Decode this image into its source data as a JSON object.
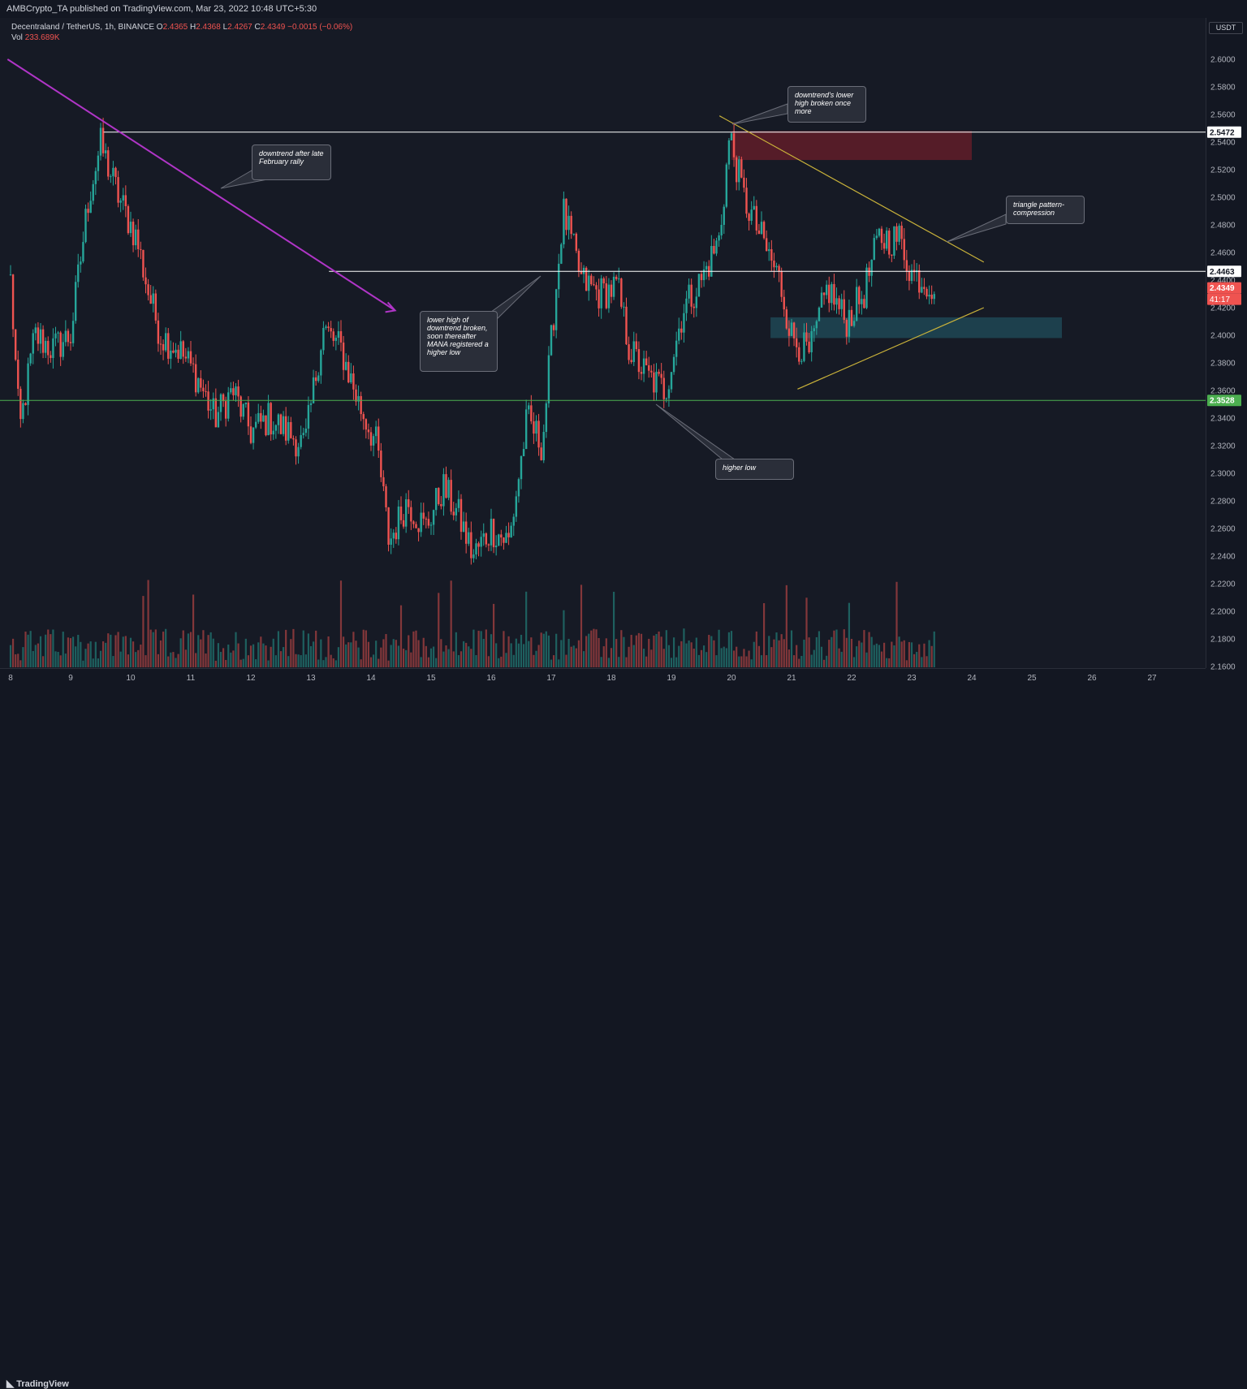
{
  "header": {
    "publisher_line": "AMBCrypto_TA published on TradingView.com, Mar 23, 2022 10:48 UTC+5:30"
  },
  "legend": {
    "symbol": "Decentraland / TetherUS, 1h, BINANCE",
    "open_label": "O",
    "open": "2.4365",
    "high_label": "H",
    "high": "2.4368",
    "low_label": "L",
    "low": "2.4267",
    "close_label": "C",
    "close": "2.4349",
    "change": "−0.0015 (−0.06%)",
    "vol_label": "Vol",
    "vol": "233.689K"
  },
  "price_axis": {
    "currency": "USDT",
    "ticks": [
      "2.6000",
      "2.5800",
      "2.5600",
      "2.5400",
      "2.5200",
      "2.5000",
      "2.4800",
      "2.4600",
      "2.4400",
      "2.4200",
      "2.4000",
      "2.3800",
      "2.3600",
      "2.3400",
      "2.3200",
      "2.3000",
      "2.2800",
      "2.2600",
      "2.2400",
      "2.2200",
      "2.2000",
      "2.1800",
      "2.1600"
    ]
  },
  "time_axis": {
    "ticks": [
      "8",
      "9",
      "10",
      "11",
      "12",
      "13",
      "14",
      "15",
      "16",
      "17",
      "18",
      "19",
      "20",
      "21",
      "22",
      "23",
      "24",
      "25",
      "26",
      "27"
    ]
  },
  "price_labels": {
    "resistance": "2.5472",
    "mid": "2.4463",
    "current": "2.4349",
    "countdown": "41:17",
    "support": "2.3528"
  },
  "annotations": {
    "downtrend": "downtrend after late February rally",
    "lower_high": "lower high of downtrend broken, soon thereafter MANA registered a higher low",
    "downtrend_broken": "downtrend's lower high broken once more",
    "triangle": "triangle pattern- compression",
    "higher_low": "higher low"
  },
  "footer": {
    "brand": "TradingView",
    "logo_icon": "tradingview-logo-icon"
  },
  "colors": {
    "background": "#161a25",
    "up": "#26a69a",
    "down": "#ef5350",
    "trendline": "#b035c7",
    "triangle": "#c9b23a",
    "support_line": "#4caf50",
    "resistance_zone": "#6b1d2a",
    "demand_zone": "#1f4a57"
  },
  "chart_data": {
    "type": "candlestick",
    "symbol": "Decentraland / TetherUS",
    "interval": "1h",
    "exchange": "BINANCE",
    "y_axis_label": "USDT",
    "ylim": [
      2.155,
      2.618
    ],
    "x_range_days": [
      "8",
      "28"
    ],
    "grid": false,
    "horizontal_levels": [
      {
        "price": 2.5472,
        "color": "#ffffff"
      },
      {
        "price": 2.4463,
        "color": "#ffffff"
      },
      {
        "price": 2.3528,
        "color": "#4caf50"
      }
    ],
    "zones": [
      {
        "name": "resistance",
        "from_day": 20.0,
        "to_day": 24.0,
        "price_low": 2.527,
        "price_high": 2.548
      },
      {
        "name": "demand",
        "from_day": 20.65,
        "to_day": 25.5,
        "price_low": 2.398,
        "price_high": 2.413
      }
    ],
    "trendlines": [
      {
        "name": "downtrend",
        "from": [
          7.95,
          2.6
        ],
        "to": [
          14.4,
          2.418
        ]
      },
      {
        "name": "triangle-upper",
        "from": [
          19.8,
          2.559
        ],
        "to": [
          24.2,
          2.453
        ]
      },
      {
        "name": "triangle-lower",
        "from": [
          21.1,
          2.361
        ],
        "to": [
          24.2,
          2.42
        ]
      }
    ],
    "path": [
      [
        8.0,
        2.44
      ],
      [
        8.15,
        2.33
      ],
      [
        8.4,
        2.4
      ],
      [
        8.7,
        2.39
      ],
      [
        9.0,
        2.4
      ],
      [
        9.3,
        2.5
      ],
      [
        9.5,
        2.538
      ],
      [
        9.8,
        2.5
      ],
      [
        10.1,
        2.47
      ],
      [
        10.3,
        2.43
      ],
      [
        10.5,
        2.4
      ],
      [
        10.8,
        2.39
      ],
      [
        11.1,
        2.37
      ],
      [
        11.4,
        2.34
      ],
      [
        11.7,
        2.36
      ],
      [
        12.0,
        2.33
      ],
      [
        12.3,
        2.34
      ],
      [
        12.6,
        2.33
      ],
      [
        12.9,
        2.32
      ],
      [
        13.2,
        2.405
      ],
      [
        13.5,
        2.39
      ],
      [
        13.8,
        2.35
      ],
      [
        14.1,
        2.32
      ],
      [
        14.3,
        2.25
      ],
      [
        14.6,
        2.28
      ],
      [
        14.9,
        2.26
      ],
      [
        15.2,
        2.29
      ],
      [
        15.45,
        2.27
      ],
      [
        15.7,
        2.24
      ],
      [
        16.0,
        2.26
      ],
      [
        16.3,
        2.25
      ],
      [
        16.6,
        2.34
      ],
      [
        16.85,
        2.32
      ],
      [
        17.05,
        2.42
      ],
      [
        17.2,
        2.49
      ],
      [
        17.5,
        2.44
      ],
      [
        17.8,
        2.43
      ],
      [
        18.1,
        2.435
      ],
      [
        18.3,
        2.39
      ],
      [
        18.6,
        2.37
      ],
      [
        18.9,
        2.36
      ],
      [
        19.2,
        2.42
      ],
      [
        19.5,
        2.44
      ],
      [
        19.8,
        2.47
      ],
      [
        19.97,
        2.545
      ],
      [
        20.2,
        2.5
      ],
      [
        20.5,
        2.47
      ],
      [
        20.8,
        2.44
      ],
      [
        21.0,
        2.4
      ],
      [
        21.3,
        2.385
      ],
      [
        21.6,
        2.435
      ],
      [
        21.9,
        2.41
      ],
      [
        22.2,
        2.43
      ],
      [
        22.45,
        2.47
      ],
      [
        22.8,
        2.47
      ],
      [
        23.0,
        2.445
      ],
      [
        23.2,
        2.44
      ],
      [
        23.4,
        2.4349
      ]
    ],
    "volume_note": "volume bars drawn along the bottom of the chart"
  }
}
